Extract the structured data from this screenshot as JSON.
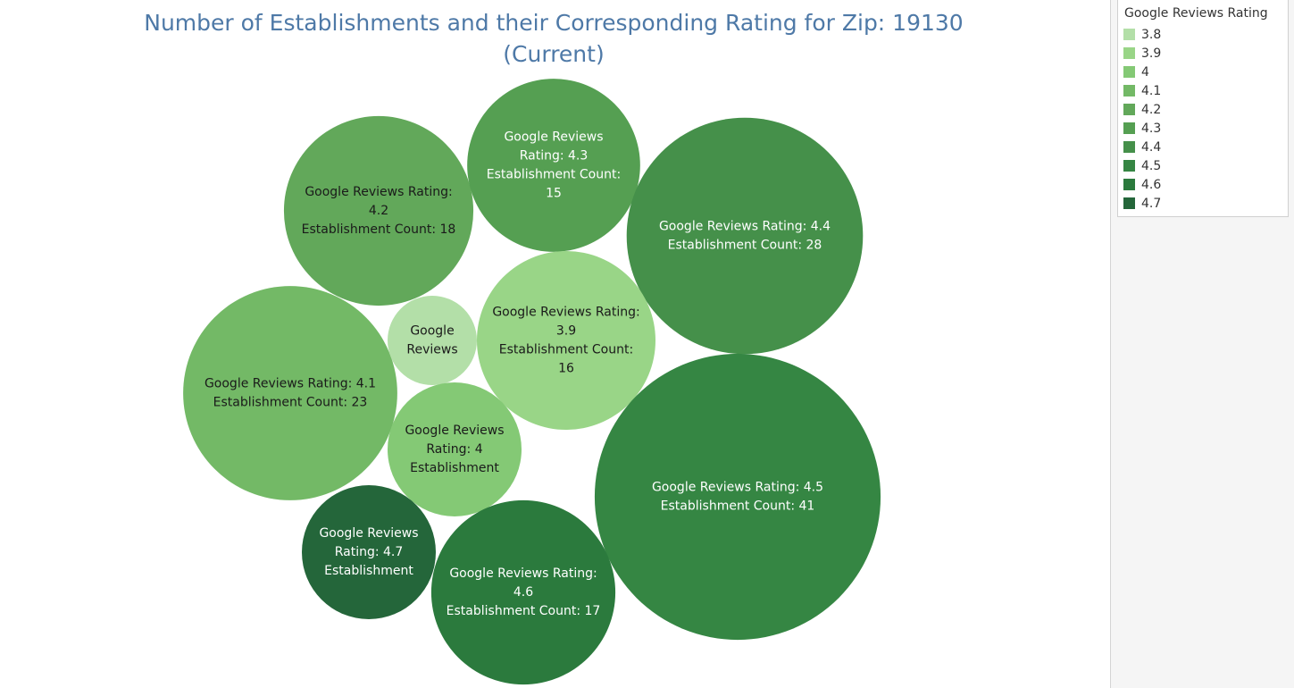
{
  "chart_data": {
    "type": "bubble",
    "title": "Number of Establishments and their Corresponding Rating for Zip: 19130 (Current)",
    "title_lines": [
      "Number of Establishments and their Corresponding Rating for Zip: 19130",
      "(Current)"
    ],
    "legend": {
      "title": "Google Reviews Rating",
      "placement": "top-right",
      "items": [
        {
          "label": "3.8",
          "color": "#b3dfa8"
        },
        {
          "label": "3.9",
          "color": "#99d587"
        },
        {
          "label": "4",
          "color": "#84c975"
        },
        {
          "label": "4.1",
          "color": "#73b966"
        },
        {
          "label": "4.2",
          "color": "#62a85a"
        },
        {
          "label": "4.3",
          "color": "#559f52"
        },
        {
          "label": "4.4",
          "color": "#45904a"
        },
        {
          "label": "4.5",
          "color": "#358643"
        },
        {
          "label": "4.6",
          "color": "#2b7a3d"
        },
        {
          "label": "4.7",
          "color": "#24663a"
        }
      ]
    },
    "bubbles": [
      {
        "rating": "4.2",
        "count": 18,
        "color": "#62a85a",
        "text_color": "#1a1a1a",
        "label_lines": [
          "Google Reviews Rating:",
          "4.2",
          "Establishment Count: 18"
        ]
      },
      {
        "rating": "4.3",
        "count": 15,
        "color": "#559f52",
        "text_color": "#ffffff",
        "label_lines": [
          "Google Reviews",
          "Rating: 4.3",
          "Establishment Count:",
          "15"
        ]
      },
      {
        "rating": "4.4",
        "count": 28,
        "color": "#45904a",
        "text_color": "#ffffff",
        "label_lines": [
          "Google Reviews Rating: 4.4",
          "Establishment Count: 28"
        ]
      },
      {
        "rating": "4.1",
        "count": 23,
        "color": "#73b966",
        "text_color": "#1a1a1a",
        "label_lines": [
          "Google Reviews Rating: 4.1",
          "Establishment Count: 23"
        ]
      },
      {
        "rating": "3.8",
        "count": 4,
        "color": "#b3dfa8",
        "text_color": "#1a1a1a",
        "label_lines": [
          "Google",
          "Reviews"
        ]
      },
      {
        "rating": "3.9",
        "count": 16,
        "color": "#99d587",
        "text_color": "#1a1a1a",
        "label_lines": [
          "Google Reviews Rating:",
          "3.9",
          "Establishment Count:",
          "16"
        ]
      },
      {
        "rating": "4",
        "count": 9,
        "color": "#84c975",
        "text_color": "#1a1a1a",
        "label_lines": [
          "Google Reviews",
          "Rating: 4",
          "Establishment"
        ]
      },
      {
        "rating": "4.5",
        "count": 41,
        "color": "#358643",
        "text_color": "#ffffff",
        "label_lines": [
          "Google Reviews Rating: 4.5",
          "Establishment Count: 41"
        ]
      },
      {
        "rating": "4.7",
        "count": 9,
        "color": "#24663a",
        "text_color": "#ffffff",
        "label_lines": [
          "Google Reviews",
          "Rating: 4.7",
          "Establishment"
        ]
      },
      {
        "rating": "4.6",
        "count": 17,
        "color": "#2b7a3d",
        "text_color": "#ffffff",
        "label_lines": [
          "Google Reviews Rating:",
          "4.6",
          "Establishment Count: 17"
        ]
      }
    ]
  }
}
